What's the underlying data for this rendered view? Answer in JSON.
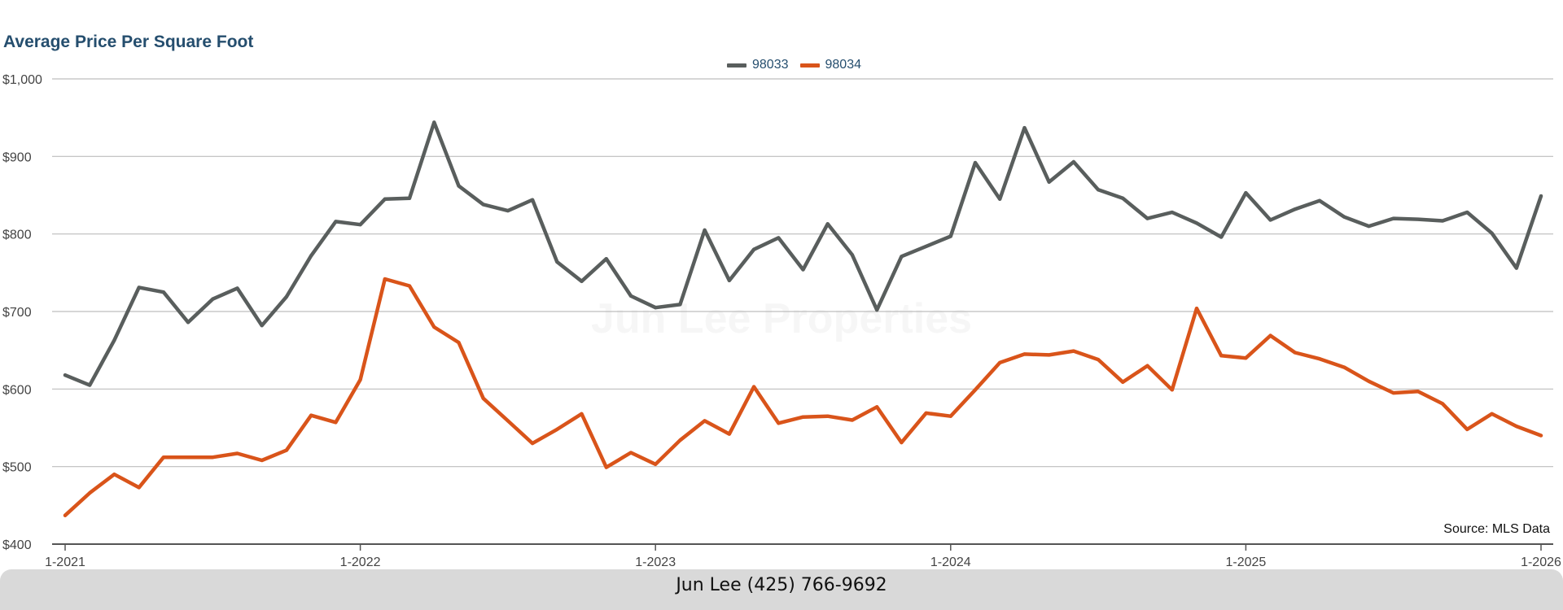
{
  "title": "Average Price Per Square Foot",
  "source": "Source: MLS Data",
  "footer": "Jun Lee (425) 766-9692",
  "watermark": "Jun Lee Properties",
  "colors": {
    "series_98033": "#595e5d",
    "series_98034": "#d9541a",
    "title": "#254e6e",
    "grid": "#bdbdbd",
    "axis": "#555555"
  },
  "chart_data": {
    "type": "line",
    "title": "Average Price Per Square Foot",
    "xlabel": "",
    "ylabel": "",
    "x_range": [
      "1-2021",
      "1-2026"
    ],
    "x_ticks": [
      "1-2021",
      "1-2022",
      "1-2023",
      "1-2024",
      "1-2025",
      "1-2026"
    ],
    "y_ticks": [
      "$400",
      "$500",
      "$600",
      "$700",
      "$800",
      "$900",
      "$1,000"
    ],
    "ylim": [
      400,
      1000
    ],
    "grid": true,
    "legend_position": "top-center",
    "series": [
      {
        "name": "98033",
        "color": "#595e5d",
        "values": [
          618,
          605,
          663,
          731,
          725,
          686,
          716,
          730,
          682,
          719,
          772,
          816,
          812,
          845,
          846,
          944,
          862,
          838,
          830,
          844,
          764,
          739,
          768,
          720,
          705,
          709,
          805,
          740,
          780,
          795,
          754,
          813,
          773,
          702,
          771,
          784,
          797,
          892,
          845,
          937,
          867,
          893,
          857,
          846,
          820,
          828,
          814,
          796,
          853,
          818,
          832,
          843,
          822,
          810,
          820,
          819,
          817,
          828,
          801,
          756,
          849
        ]
      },
      {
        "name": "98034",
        "color": "#d9541a",
        "values": [
          437,
          466,
          490,
          473,
          512,
          512,
          512,
          517,
          508,
          521,
          566,
          557,
          612,
          742,
          733,
          680,
          660,
          588,
          559,
          530,
          548,
          568,
          499,
          518,
          503,
          534,
          559,
          542,
          603,
          556,
          564,
          565,
          560,
          577,
          531,
          569,
          565,
          599,
          634,
          645,
          644,
          649,
          638,
          609,
          630,
          599,
          704,
          643,
          640,
          669,
          647,
          639,
          628,
          610,
          595,
          597,
          581,
          548,
          568,
          552,
          540
        ]
      }
    ]
  }
}
